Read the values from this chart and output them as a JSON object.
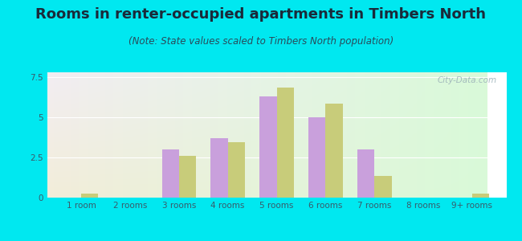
{
  "title": "Rooms in renter-occupied apartments in Timbers North",
  "subtitle": "(Note: State values scaled to Timbers North population)",
  "categories": [
    "1 room",
    "2 rooms",
    "3 rooms",
    "4 rooms",
    "5 rooms",
    "6 rooms",
    "7 rooms",
    "8 rooms",
    "9+ rooms"
  ],
  "timbers_north": [
    0.0,
    0.0,
    3.0,
    3.7,
    6.3,
    5.0,
    3.0,
    0.0,
    0.0
  ],
  "fort_meade": [
    0.25,
    0.0,
    2.6,
    3.45,
    6.85,
    5.85,
    1.35,
    0.0,
    0.25
  ],
  "color_timbers": "#c9a0dc",
  "color_fort": "#c8cc7a",
  "ylim": [
    0,
    7.8
  ],
  "yticks": [
    0,
    2.5,
    5,
    7.5
  ],
  "bg_outer": "#00e8f0",
  "watermark": "City-Data.com",
  "bar_width": 0.35,
  "title_fontsize": 13,
  "subtitle_fontsize": 8.5,
  "tick_fontsize": 7.5,
  "legend_fontsize": 8.5,
  "title_color": "#1a2a3a",
  "subtitle_color": "#2a4a5a",
  "tick_color": "#3a5a6a"
}
